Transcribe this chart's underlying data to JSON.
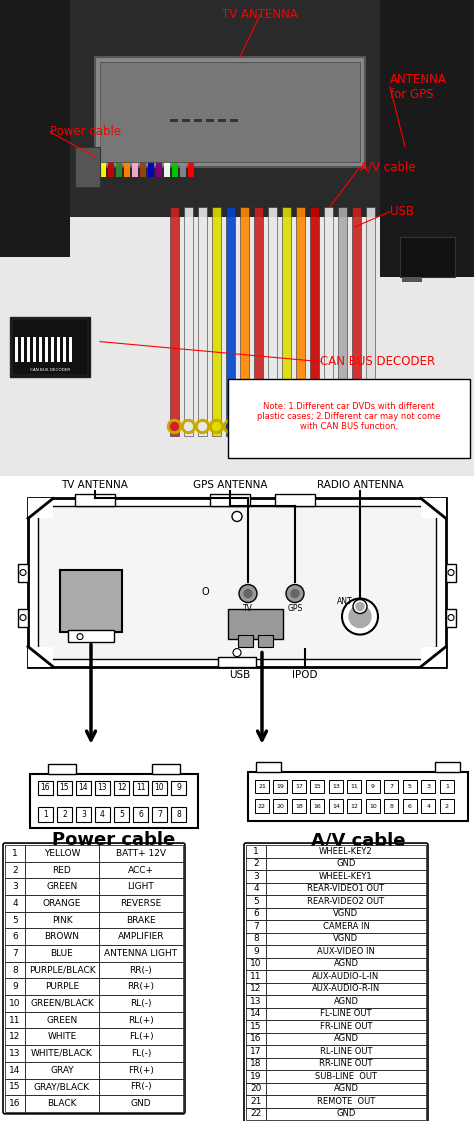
{
  "note_text": "Note: 1.Different car DVDs with different\nplastic cases; 2.Different car may not come\nwith CAN BUS function.",
  "diagram_labels": [
    "TV ANTENNA",
    "GPS ANTENNA",
    "RADIO ANTENNA"
  ],
  "power_cable_title": "Power cable",
  "av_cable_title": "A/V cable",
  "power_cable_data": [
    [
      1,
      "YELLOW",
      "BATT+ 12V"
    ],
    [
      2,
      "RED",
      "ACC+"
    ],
    [
      3,
      "GREEN",
      "LIGHT"
    ],
    [
      4,
      "ORANGE",
      "REVERSE"
    ],
    [
      5,
      "PINK",
      "BRAKE"
    ],
    [
      6,
      "BROWN",
      "AMPLIFIER"
    ],
    [
      7,
      "BLUE",
      "ANTENNA LIGHT"
    ],
    [
      8,
      "PURPLE/BLACK",
      "RR(-)"
    ],
    [
      9,
      "PURPLE",
      "RR(+)"
    ],
    [
      10,
      "GREEN/BLACK",
      "RL(-)"
    ],
    [
      11,
      "GREEN",
      "RL(+)"
    ],
    [
      12,
      "WHITE",
      "FL(+)"
    ],
    [
      13,
      "WHITE/BLACK",
      "FL(-)"
    ],
    [
      14,
      "GRAY",
      "FR(+)"
    ],
    [
      15,
      "GRAY/BLACK",
      "FR(-)"
    ],
    [
      16,
      "BLACK",
      "GND"
    ]
  ],
  "av_cable_data": [
    [
      1,
      "WHEEL-KEY2"
    ],
    [
      2,
      "GND"
    ],
    [
      3,
      "WHEEL-KEY1"
    ],
    [
      4,
      "REAR-VIDEO1 OUT"
    ],
    [
      5,
      "REAR-VIDEO2 OUT"
    ],
    [
      6,
      "VGND"
    ],
    [
      7,
      "CAMERA IN"
    ],
    [
      8,
      "VGND"
    ],
    [
      9,
      "AUX-VIDEO IN"
    ],
    [
      10,
      "AGND"
    ],
    [
      11,
      "AUX-AUDIO-L-IN"
    ],
    [
      12,
      "AUX-AUDIO-R-IN"
    ],
    [
      13,
      "AGND"
    ],
    [
      14,
      "FL-LINE OUT"
    ],
    [
      15,
      "FR-LINE OUT"
    ],
    [
      16,
      "AGND"
    ],
    [
      17,
      "RL-LINE OUT"
    ],
    [
      18,
      "RR-LINE OUT"
    ],
    [
      19,
      "SUB-LINE  OUT"
    ],
    [
      20,
      "AGND"
    ],
    [
      21,
      "REMOTE  OUT"
    ],
    [
      22,
      "GND"
    ]
  ],
  "photo_bg_top": "#2c2c2c",
  "photo_bg_bottom": "#d0d0d0",
  "stereo_color": "#909090",
  "cable_colors_rca": [
    "#cc2222",
    "#dddddd",
    "#dddddd",
    "#ffff00",
    "#0055cc",
    "#ff8800",
    "#cc2222",
    "#dddddd",
    "#ffff22",
    "#ff8800",
    "#cc2222",
    "#dddddd"
  ],
  "wire_colors": [
    "#ffff00",
    "#cc0000",
    "#338833",
    "#ff8800",
    "#ffaacc",
    "#994411",
    "#0000cc",
    "#880088",
    "#ffffff",
    "#00cc00",
    "#888888",
    "#ff0000"
  ],
  "bg_color": "#ffffff"
}
